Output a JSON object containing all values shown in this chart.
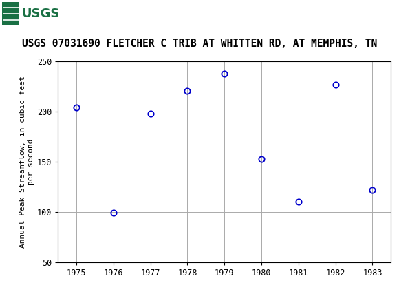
{
  "title": "USGS 07031690 FLETCHER C TRIB AT WHITTEN RD, AT MEMPHIS, TN",
  "ylabel": "Annual Peak Streamflow, in cubic feet\nper second",
  "years": [
    1975,
    1976,
    1977,
    1978,
    1979,
    1980,
    1981,
    1982,
    1983
  ],
  "values": [
    204,
    99,
    198,
    221,
    238,
    153,
    110,
    227,
    122
  ],
  "xlim": [
    1974.5,
    1983.5
  ],
  "ylim": [
    50,
    250
  ],
  "yticks": [
    50,
    100,
    150,
    200,
    250
  ],
  "xticks": [
    1975,
    1976,
    1977,
    1978,
    1979,
    1980,
    1981,
    1982,
    1983
  ],
  "marker_color": "#0000CC",
  "marker_size": 6,
  "grid_color": "#aaaaaa",
  "bg_color": "#ffffff",
  "header_bg_color": "#1a7044",
  "title_fontsize": 10.5,
  "ylabel_fontsize": 8,
  "tick_fontsize": 8.5
}
